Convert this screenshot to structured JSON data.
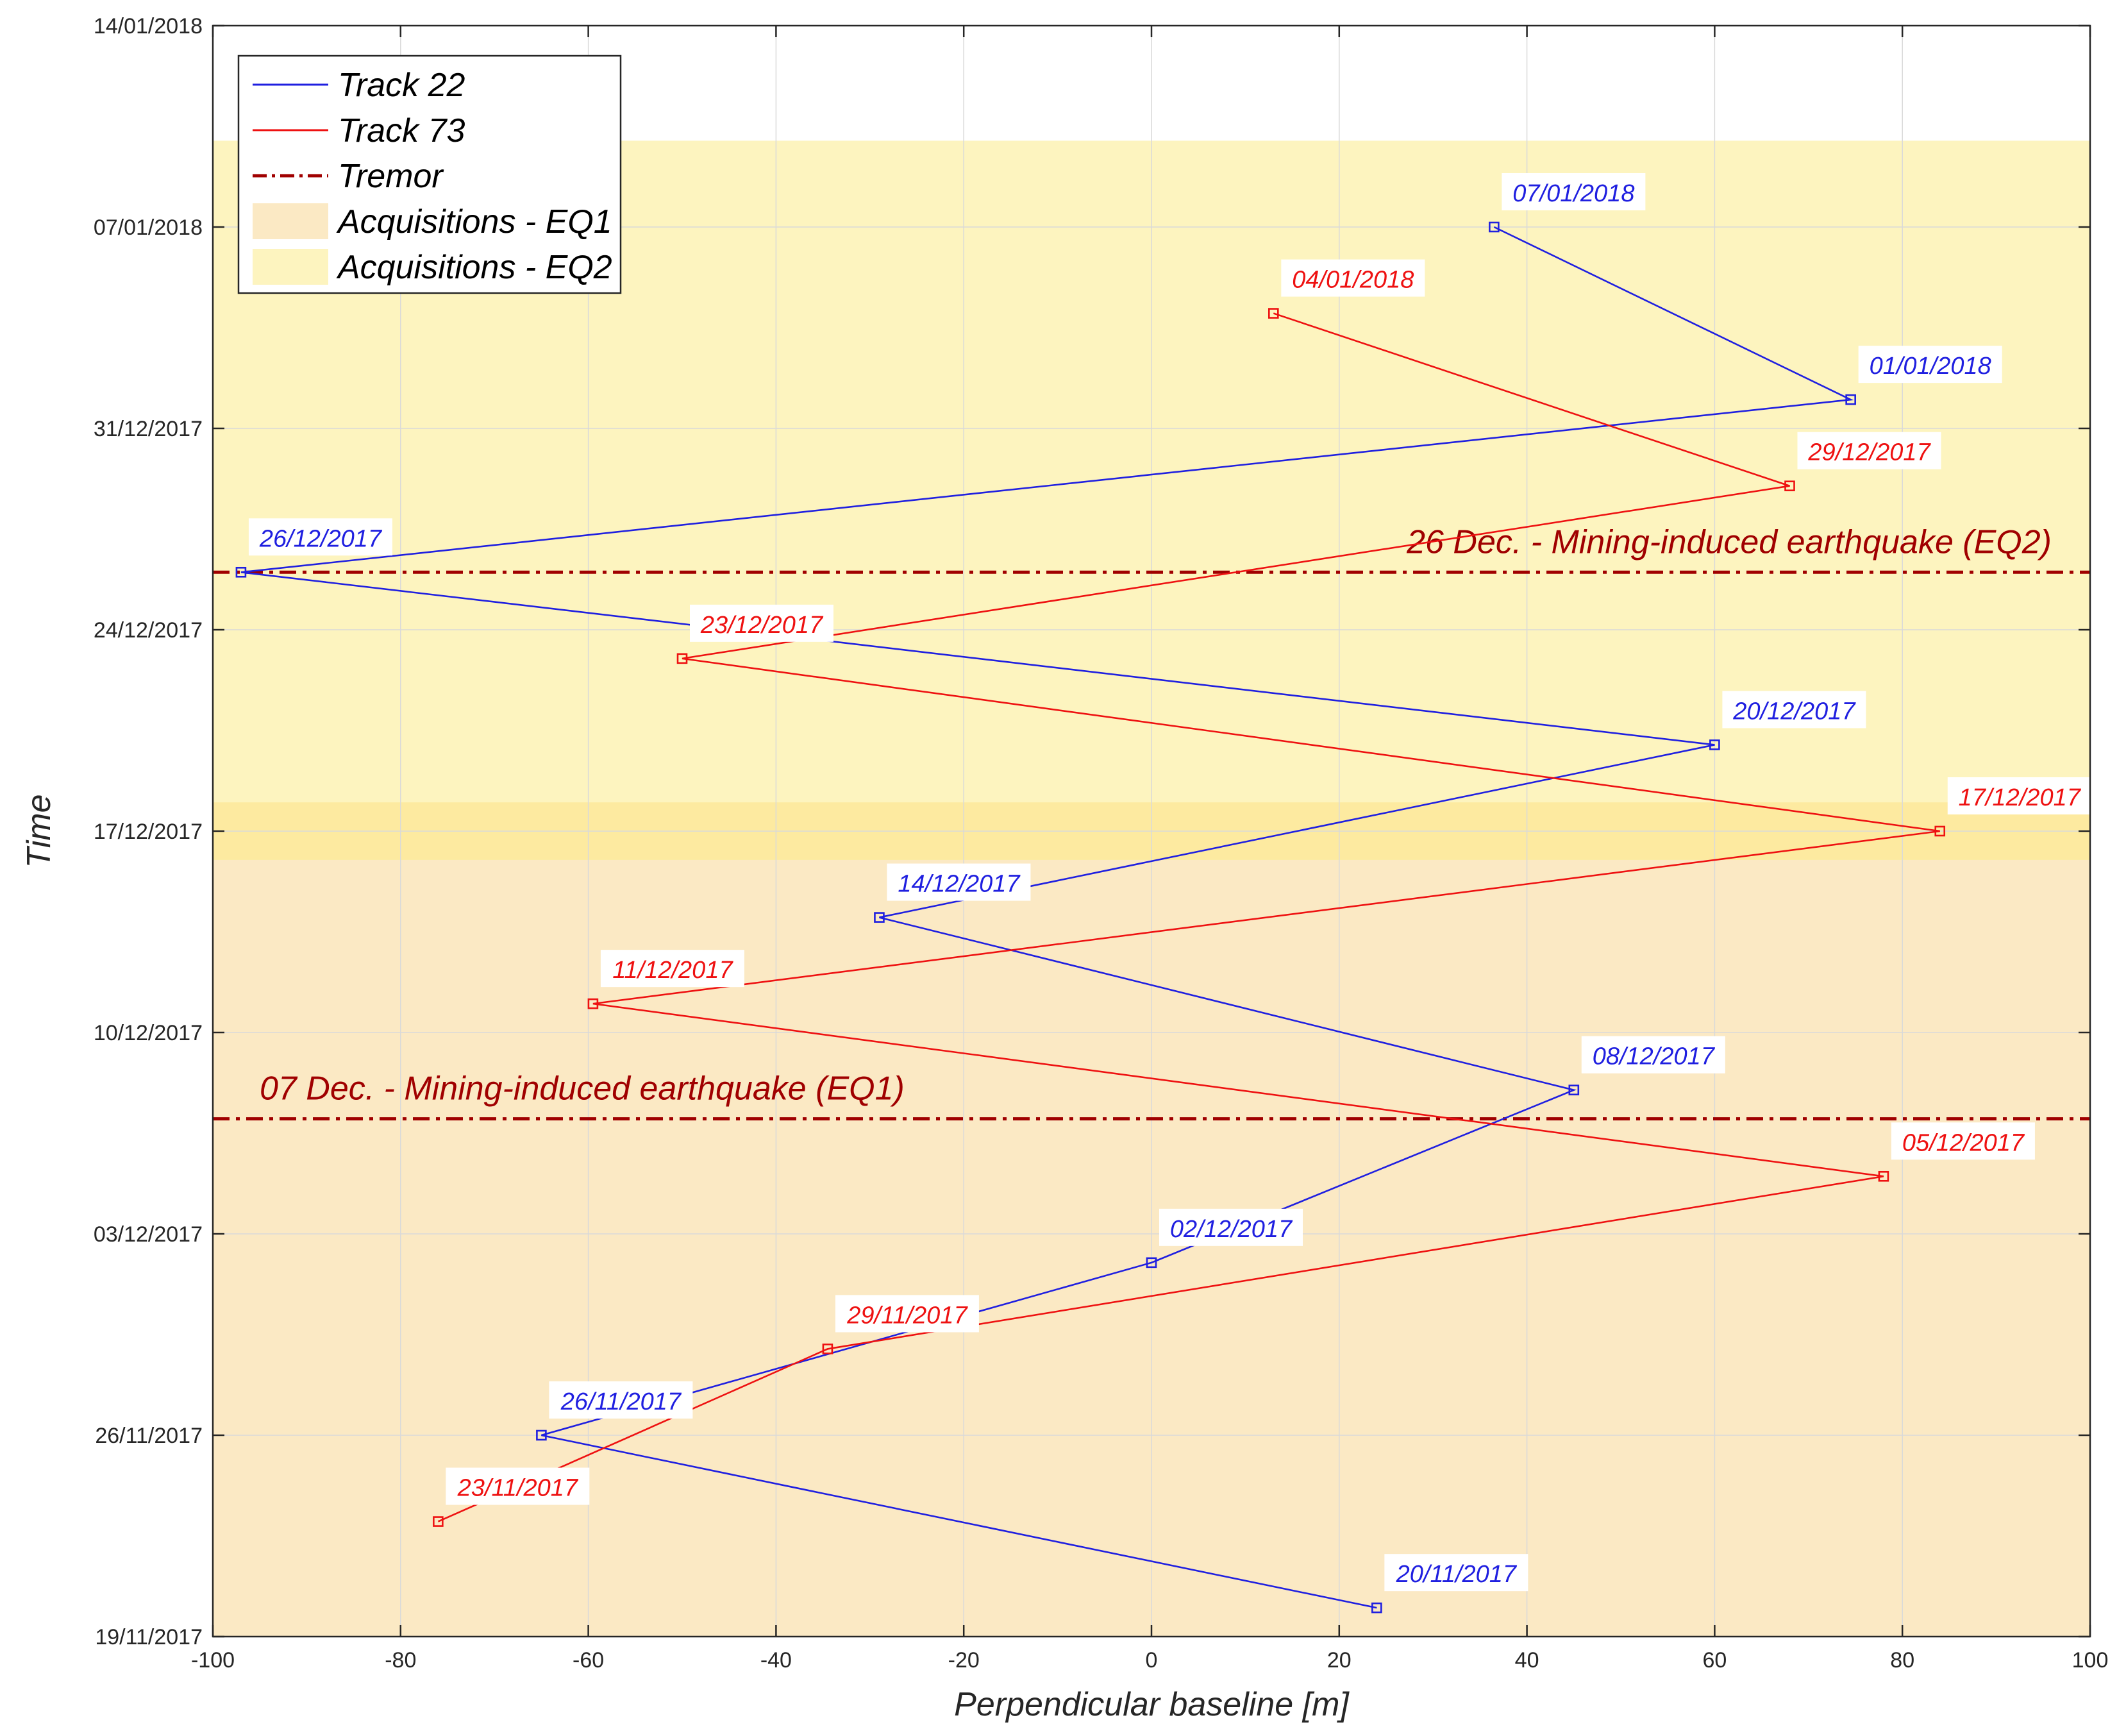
{
  "chart_data": {
    "type": "line",
    "xlabel": "Perpendicular baseline [m]",
    "ylabel": "Time",
    "xlim": [
      -100,
      100
    ],
    "ylim_days": [
      0,
      56
    ],
    "x_ticks": [
      -100,
      -80,
      -60,
      -40,
      -20,
      0,
      20,
      40,
      60,
      80,
      100
    ],
    "y_ticks": [
      {
        "day": 0,
        "label": "19/11/2017"
      },
      {
        "day": 7,
        "label": "26/11/2017"
      },
      {
        "day": 14,
        "label": "03/12/2017"
      },
      {
        "day": 21,
        "label": "10/12/2017"
      },
      {
        "day": 28,
        "label": "17/12/2017"
      },
      {
        "day": 35,
        "label": "24/12/2017"
      },
      {
        "day": 42,
        "label": "31/12/2017"
      },
      {
        "day": 49,
        "label": "07/01/2018"
      },
      {
        "day": 56,
        "label": "14/01/2018"
      }
    ],
    "grid": true,
    "legend_position": "top-left",
    "series": [
      {
        "name": "Track 22",
        "color": "#1f1fe0",
        "points": [
          {
            "x": 24,
            "day": 1,
            "label": "20/11/2017"
          },
          {
            "x": -65,
            "day": 7,
            "label": "26/11/2017"
          },
          {
            "x": 0,
            "day": 13,
            "label": "02/12/2017"
          },
          {
            "x": 45,
            "day": 19,
            "label": "08/12/2017"
          },
          {
            "x": -29,
            "day": 25,
            "label": "14/12/2017"
          },
          {
            "x": 60,
            "day": 31,
            "label": "20/12/2017"
          },
          {
            "x": -97,
            "day": 37,
            "label": "26/12/2017"
          },
          {
            "x": 74.5,
            "day": 43,
            "label": "01/01/2018"
          },
          {
            "x": 36.5,
            "day": 49,
            "label": "07/01/2018"
          }
        ]
      },
      {
        "name": "Track 73",
        "color": "#ee1111",
        "points": [
          {
            "x": -76,
            "day": 4,
            "label": "23/11/2017"
          },
          {
            "x": -34.5,
            "day": 10,
            "label": "29/11/2017"
          },
          {
            "x": 78,
            "day": 16,
            "label": "05/12/2017"
          },
          {
            "x": -59.5,
            "day": 22,
            "label": "11/12/2017"
          },
          {
            "x": 84,
            "day": 28,
            "label": "17/12/2017"
          },
          {
            "x": -50,
            "day": 34,
            "label": "23/12/2017"
          },
          {
            "x": 68,
            "day": 40,
            "label": "29/12/2017"
          },
          {
            "x": 13,
            "day": 46,
            "label": "04/01/2018"
          }
        ]
      }
    ],
    "tremors": [
      {
        "day": 18,
        "label": "07 Dec. - Mining-induced earthquake (EQ1)",
        "label_side": "left"
      },
      {
        "day": 37,
        "label": "26 Dec. - Mining-induced earthquake (EQ2)",
        "label_side": "right"
      }
    ],
    "bands": [
      {
        "name": "Acquisitions - EQ1",
        "day_from": 0,
        "day_to": 29,
        "color": "#fbe9c4"
      },
      {
        "name": "Acquisitions - EQ2",
        "day_from": 27,
        "day_to": 52,
        "color": "#fdf4bf"
      }
    ],
    "overlap_color": "#fdeaa0",
    "tremor_color": "#a00000",
    "legend": [
      {
        "kind": "line",
        "label": "Track 22",
        "color": "#1f1fe0"
      },
      {
        "kind": "line",
        "label": "Track 73",
        "color": "#ee1111"
      },
      {
        "kind": "dashdot",
        "label": "Tremor",
        "color": "#a00000"
      },
      {
        "kind": "patch",
        "label": "Acquisitions - EQ1",
        "color": "#fbe9c4"
      },
      {
        "kind": "patch",
        "label": "Acquisitions - EQ2",
        "color": "#fdf4bf"
      }
    ]
  }
}
